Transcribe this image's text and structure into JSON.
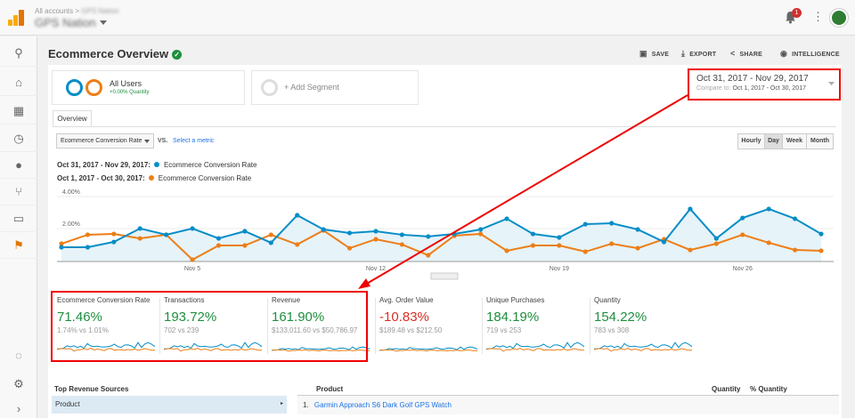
{
  "header": {
    "breadcrumb": "All accounts >",
    "breadcrumb_account": "GPS Nation",
    "account": "GPS Nation",
    "notifications": "1"
  },
  "sidebar": {
    "icons": [
      "search-icon",
      "home-icon",
      "customization-icon",
      "clock-icon",
      "person-icon",
      "acquisition-icon",
      "behavior-icon",
      "flag-icon"
    ],
    "bottom": [
      "lightbulb-icon",
      "gear-icon",
      "chevron-right-icon"
    ]
  },
  "page": {
    "title": "Ecommerce Overview",
    "actions": {
      "save": "SAVE",
      "export": "EXPORT",
      "share": "SHARE",
      "intelligence": "INTELLIGENCE"
    }
  },
  "segments": {
    "all_users": "All Users",
    "all_users_sub": "+0.00% Quantity",
    "add": "+ Add Segment"
  },
  "date": {
    "range": "Oct 31, 2017 - Nov 29, 2017",
    "compare_label": "Compare to:",
    "compare_range": "Oct 1, 2017 - Oct 30, 2017"
  },
  "tabs": {
    "overview": "Overview"
  },
  "controls": {
    "metric": "Ecommerce Conversion Rate",
    "vs": "VS.",
    "select_metric": "Select a metric",
    "granularity": [
      "Hourly",
      "Day",
      "Week",
      "Month"
    ],
    "active": "Day"
  },
  "colors": {
    "blue": "#058dc7",
    "orange": "#ed7e17",
    "green": "#1e8e3e",
    "red": "#d93025"
  },
  "chart_data": {
    "type": "line",
    "ylabel": "Ecommerce Conversion Rate",
    "y_ticks": [
      "4.00%",
      "2.00%"
    ],
    "ylim": [
      0,
      4
    ],
    "x_ticks": [
      "Nov 5",
      "Nov 12",
      "Nov 19",
      "Nov 26"
    ],
    "series": [
      {
        "name": "Ecommerce Conversion Rate",
        "period": "Oct 31, 2017 - Nov 29, 2017:",
        "color": "#058dc7",
        "values": [
          0.89,
          0.89,
          1.22,
          2.06,
          1.67,
          2.06,
          1.44,
          1.89,
          1.17,
          2.89,
          2.0,
          1.78,
          1.89,
          1.67,
          1.56,
          1.72,
          2.0,
          2.67,
          1.72,
          1.5,
          2.33,
          2.39,
          2.0,
          1.22,
          3.28,
          1.44,
          2.72,
          3.28,
          2.67,
          1.72
        ]
      },
      {
        "name": "Ecommerce Conversion Rate",
        "period": "Oct 1, 2017 - Oct 30, 2017:",
        "color": "#ed7e17",
        "values": [
          1.11,
          1.67,
          1.72,
          1.44,
          1.67,
          0.11,
          1.0,
          1.0,
          1.67,
          1.06,
          1.94,
          0.83,
          1.39,
          1.06,
          0.39,
          1.61,
          1.72,
          0.67,
          1.0,
          1.0,
          0.61,
          1.11,
          0.83,
          1.39,
          0.72,
          1.11,
          1.67,
          1.17,
          0.72,
          0.67
        ]
      }
    ]
  },
  "metrics": [
    {
      "name": "Ecommerce Conversion Rate",
      "change": "71.46%",
      "compare": "1.74% vs 1.01%",
      "positive": true
    },
    {
      "name": "Transactions",
      "change": "193.72%",
      "compare": "702 vs 239",
      "positive": true
    },
    {
      "name": "Revenue",
      "change": "161.90%",
      "compare": "$133,011.60 vs $50,786.97",
      "positive": true
    },
    {
      "name": "Avg. Order Value",
      "change": "-10.83%",
      "compare": "$189.48 vs $212.50",
      "positive": false
    },
    {
      "name": "Unique Purchases",
      "change": "184.19%",
      "compare": "719 vs 253",
      "positive": true
    },
    {
      "name": "Quantity",
      "change": "154.22%",
      "compare": "783 vs 308",
      "positive": true
    }
  ],
  "sources": {
    "title": "Top Revenue Sources",
    "items": [
      "Product"
    ]
  },
  "table": {
    "headers": {
      "product": "Product",
      "quantity": "Quantity",
      "pct": "% Quantity"
    },
    "rows": [
      {
        "rank": "1.",
        "product": "Garmin Approach S6 Dark Golf GPS Watch"
      }
    ]
  }
}
